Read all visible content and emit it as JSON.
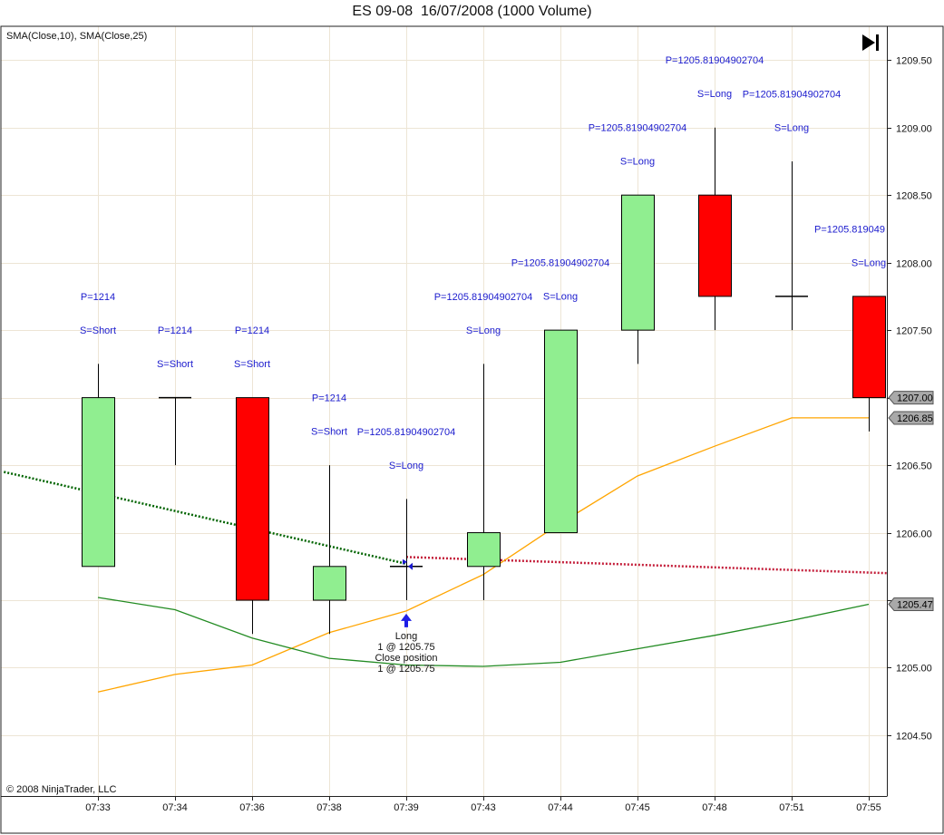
{
  "title": "ES 09-08  16/07/2008 (1000 Volume)",
  "indicator_label": "SMA(Close,10), SMA(Close,25)",
  "copyright": "© 2008 NinjaTrader, LLC",
  "colors": {
    "up": "#90ee90",
    "down": "#ff0000",
    "sma10": "#ffa500",
    "sma25": "#228b22",
    "signal": "#1a1acd",
    "trend_down": "#006400",
    "trend_flat": "#c41e3a",
    "grid": "#ede5d5",
    "marker_fill": "#a9a9a9"
  },
  "chart_data": {
    "type": "candlestick",
    "categories": [
      "07:33",
      "07:34",
      "07:36",
      "07:38",
      "07:39",
      "07:43",
      "07:44",
      "07:45",
      "07:48",
      "07:51",
      "07:55"
    ],
    "ohlc": [
      {
        "open": 1205.75,
        "high": 1207.25,
        "low": 1205.75,
        "close": 1207.0
      },
      {
        "open": 1207.0,
        "high": 1207.0,
        "low": 1206.5,
        "close": 1207.0
      },
      {
        "open": 1207.0,
        "high": 1207.0,
        "low": 1205.25,
        "close": 1205.5
      },
      {
        "open": 1205.5,
        "high": 1206.5,
        "low": 1205.25,
        "close": 1205.75
      },
      {
        "open": 1205.75,
        "high": 1206.25,
        "low": 1205.5,
        "close": 1205.75
      },
      {
        "open": 1205.75,
        "high": 1207.25,
        "low": 1205.5,
        "close": 1206.0
      },
      {
        "open": 1206.0,
        "high": 1207.5,
        "low": 1206.0,
        "close": 1207.5
      },
      {
        "open": 1207.5,
        "high": 1208.5,
        "low": 1207.25,
        "close": 1208.5
      },
      {
        "open": 1208.5,
        "high": 1209.0,
        "low": 1207.5,
        "close": 1207.75
      },
      {
        "open": 1207.75,
        "high": 1208.75,
        "low": 1207.5,
        "close": 1207.75
      },
      {
        "open": 1207.75,
        "high": 1207.75,
        "low": 1206.75,
        "close": 1207.0
      }
    ],
    "series": [
      {
        "name": "SMA(Close,10)",
        "values": [
          1204.82,
          1204.95,
          1205.02,
          1205.26,
          1205.42,
          1205.69,
          1206.07,
          1206.42,
          1206.64,
          1206.85,
          1206.85
        ]
      },
      {
        "name": "SMA(Close,25)",
        "values": [
          1205.52,
          1205.43,
          1205.22,
          1205.07,
          1205.02,
          1205.01,
          1205.04,
          1205.14,
          1205.24,
          1205.35,
          1205.47
        ]
      }
    ],
    "trend_lines": [
      {
        "x_from": -1.22,
        "y_from": 1206.45,
        "x_to": 4.0,
        "y_to": 1205.77,
        "style": "dotted",
        "color_key": "trend_down"
      },
      {
        "x_from": 4.0,
        "y_from": 1205.82,
        "x_to": 10.25,
        "y_to": 1205.7,
        "style": "dotted",
        "color_key": "trend_flat"
      }
    ],
    "bar_labels": [
      {
        "bar": 0,
        "top": "P=1214",
        "bottom": "S=Short",
        "level": 1207.75
      },
      {
        "bar": 1,
        "top": "P=1214",
        "bottom": "S=Short",
        "level": 1207.5
      },
      {
        "bar": 2,
        "top": "P=1214",
        "bottom": "S=Short",
        "level": 1207.5
      },
      {
        "bar": 3,
        "top": "P=1214",
        "bottom": "S=Short",
        "level": 1207.0
      },
      {
        "bar": 4,
        "top": "P=1205.81904902704",
        "bottom": "S=Long",
        "level": 1206.75
      },
      {
        "bar": 5,
        "top": "P=1205.81904902704",
        "bottom": "S=Long",
        "level": 1207.75
      },
      {
        "bar": 6,
        "top": "P=1205.81904902704",
        "bottom": "S=Long",
        "level": 1208.0
      },
      {
        "bar": 7,
        "top": "P=1205.81904902704",
        "bottom": "S=Long",
        "level": 1209.0
      },
      {
        "bar": 8,
        "top": "P=1205.81904902704",
        "bottom": "S=Long",
        "level": 1209.5
      },
      {
        "bar": 9,
        "top": "P=1205.81904902704",
        "bottom": "S=Long",
        "level": 1209.25
      },
      {
        "bar": 10,
        "top": "P=1205.819049",
        "bottom": "S=Long",
        "level": 1208.25
      }
    ],
    "execution": {
      "bar": 4,
      "price": 1205.75,
      "lines": [
        "Long",
        "1 @ 1205.75",
        "Close position",
        "1 @ 1205.75"
      ]
    },
    "y_ticks": [
      1204.5,
      1205.0,
      1205.5,
      1206.0,
      1206.5,
      1207.0,
      1207.5,
      1208.0,
      1208.5,
      1209.0,
      1209.5
    ],
    "price_markers": [
      "1207.00",
      "1206.85",
      "1205.47"
    ],
    "ylim": [
      1204.05,
      1209.75
    ]
  }
}
